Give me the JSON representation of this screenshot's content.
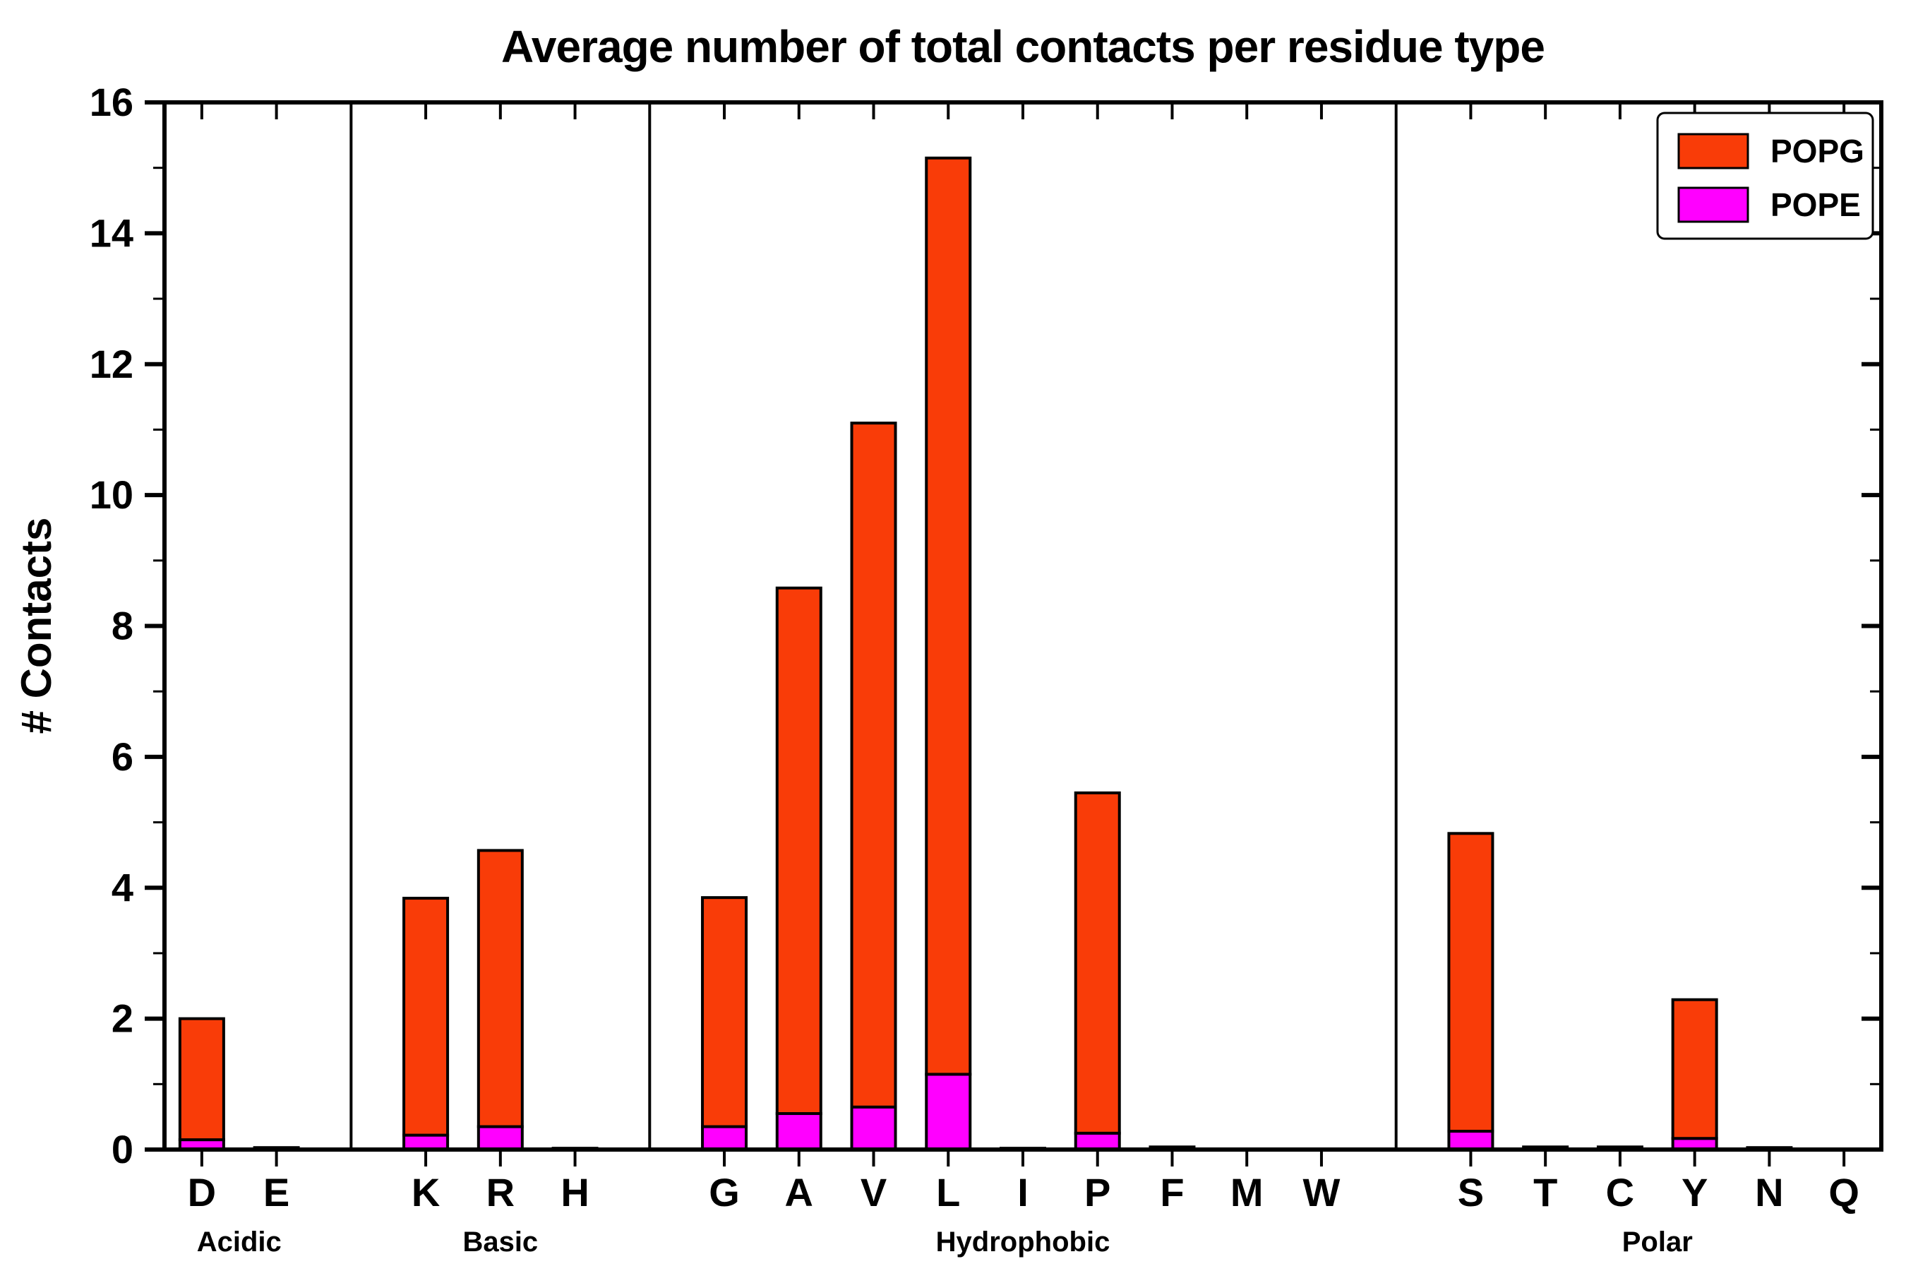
{
  "colors": {
    "POPG": "#f93c08",
    "POPE": "#ff00ff"
  },
  "legend": {
    "items": [
      {
        "label": "POPG"
      },
      {
        "label": "POPE"
      }
    ]
  },
  "chart_data": {
    "type": "bar",
    "stacked": true,
    "title": "Average number of total contacts per residue type",
    "ylabel": "# Contacts",
    "ylim": [
      0,
      16
    ],
    "yticks_major": [
      0,
      2,
      4,
      6,
      8,
      10,
      12,
      14,
      16
    ],
    "yticks_minor": [
      1,
      3,
      5,
      7,
      9,
      11,
      13,
      15
    ],
    "groups": [
      {
        "label": "Acidic",
        "residues": [
          "D",
          "E"
        ]
      },
      {
        "label": "Basic",
        "residues": [
          "K",
          "R",
          "H"
        ]
      },
      {
        "label": "Hydrophobic",
        "residues": [
          "G",
          "A",
          "V",
          "L",
          "I",
          "P",
          "F",
          "M",
          "W"
        ]
      },
      {
        "label": "Polar",
        "residues": [
          "S",
          "T",
          "C",
          "Y",
          "N",
          "Q"
        ]
      }
    ],
    "series": [
      {
        "name": "POPE",
        "values": {
          "D": 0.15,
          "E": 0.01,
          "K": 0.22,
          "R": 0.35,
          "H": 0.0,
          "G": 0.35,
          "A": 0.55,
          "V": 0.65,
          "L": 1.15,
          "I": 0.0,
          "P": 0.25,
          "F": 0.01,
          "M": 0.0,
          "W": 0.0,
          "S": 0.28,
          "T": 0.01,
          "C": 0.01,
          "Y": 0.17,
          "N": 0.01,
          "Q": 0.0
        }
      },
      {
        "name": "POPG",
        "values": {
          "D": 1.85,
          "E": 0.02,
          "K": 3.62,
          "R": 4.22,
          "H": 0.02,
          "G": 3.5,
          "A": 8.03,
          "V": 10.45,
          "L": 14.0,
          "I": 0.02,
          "P": 5.2,
          "F": 0.03,
          "M": 0.01,
          "W": 0.01,
          "S": 4.55,
          "T": 0.03,
          "C": 0.03,
          "Y": 2.12,
          "N": 0.02,
          "Q": 0.01
        }
      }
    ],
    "totals": {
      "D": 2.0,
      "E": 0.03,
      "K": 3.84,
      "R": 4.57,
      "H": 0.02,
      "G": 3.85,
      "A": 8.58,
      "V": 11.1,
      "L": 15.15,
      "I": 0.02,
      "P": 5.45,
      "F": 0.04,
      "M": 0.01,
      "W": 0.01,
      "S": 4.83,
      "T": 0.04,
      "C": 0.04,
      "Y": 2.29,
      "N": 0.03,
      "Q": 0.01
    }
  }
}
